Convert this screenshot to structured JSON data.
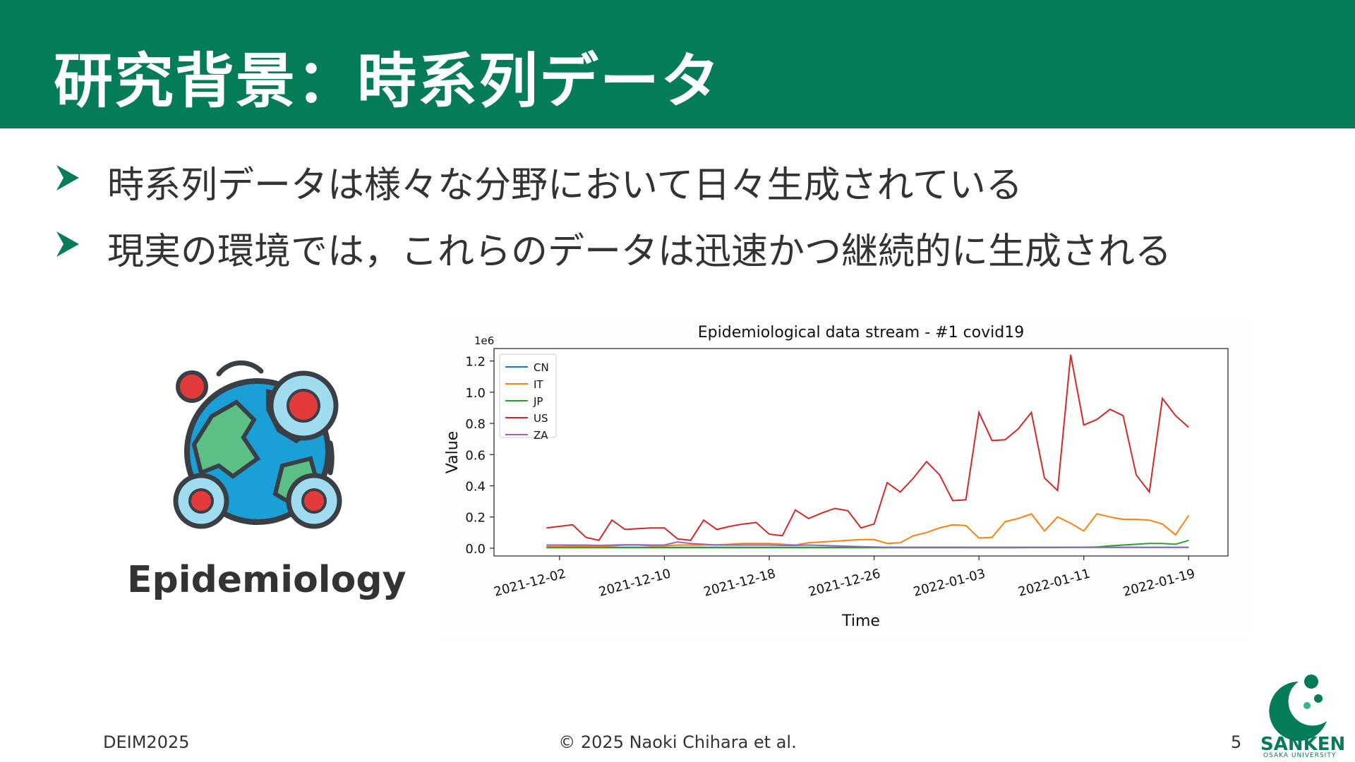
{
  "slide": {
    "title": "研究背景：時系列データ",
    "bullets": [
      "時系列データは様々な分野において日々生成されている",
      "現実の環境では，これらのデータは迅速かつ継続的に生成される"
    ],
    "image_label": "Epidemiology",
    "image_icon": "globe-virus-icon"
  },
  "footer": {
    "left": "DEIM2025",
    "center": "© 2025 Naoki Chihara et al.",
    "page": "5",
    "logo_text": "SANKEN",
    "logo_sub": "OSAKA UNIVERSITY"
  },
  "colors": {
    "header": "#047c58",
    "CN": "#1f77b4",
    "IT": "#ff7f0e",
    "JP": "#2ca02c",
    "US": "#d62728",
    "ZA": "#9467bd"
  },
  "chart_data": {
    "type": "line",
    "title": "Epidemiological data stream - #1 covid19",
    "xlabel": "Time",
    "ylabel": "Value",
    "y_multiplier_label": "1e6",
    "ylim": [
      -0.05,
      1.28
    ],
    "yticks": [
      0.0,
      0.2,
      0.4,
      0.6,
      0.8,
      1.0,
      1.2
    ],
    "ytick_labels": [
      "0.0",
      "0.2",
      "0.4",
      "0.6",
      "0.8",
      "1.0",
      "1.2"
    ],
    "xlim": [
      "2021-11-27",
      "2022-01-22"
    ],
    "xticks": [
      "2021-12-02",
      "2021-12-10",
      "2021-12-18",
      "2021-12-26",
      "2022-01-03",
      "2022-01-11",
      "2022-01-19"
    ],
    "legend_position": "top-left",
    "grid": false,
    "x": [
      "2021-12-01",
      "2021-12-02",
      "2021-12-03",
      "2021-12-04",
      "2021-12-05",
      "2021-12-06",
      "2021-12-07",
      "2021-12-08",
      "2021-12-09",
      "2021-12-10",
      "2021-12-11",
      "2021-12-12",
      "2021-12-13",
      "2021-12-14",
      "2021-12-15",
      "2021-12-16",
      "2021-12-17",
      "2021-12-18",
      "2021-12-19",
      "2021-12-20",
      "2021-12-21",
      "2021-12-22",
      "2021-12-23",
      "2021-12-24",
      "2021-12-25",
      "2021-12-26",
      "2021-12-27",
      "2021-12-28",
      "2021-12-29",
      "2021-12-30",
      "2021-12-31",
      "2022-01-01",
      "2022-01-02",
      "2022-01-03",
      "2022-01-04",
      "2022-01-05",
      "2022-01-06",
      "2022-01-07",
      "2022-01-08",
      "2022-01-09",
      "2022-01-10",
      "2022-01-11",
      "2022-01-12",
      "2022-01-13",
      "2022-01-14",
      "2022-01-15",
      "2022-01-16",
      "2022-01-17",
      "2022-01-18",
      "2022-01-19"
    ],
    "series": [
      {
        "name": "CN",
        "values": [
          0.005,
          0.005,
          0.005,
          0.005,
          0.005,
          0.005,
          0.005,
          0.005,
          0.005,
          0.005,
          0.005,
          0.005,
          0.005,
          0.005,
          0.005,
          0.005,
          0.005,
          0.005,
          0.005,
          0.005,
          0.005,
          0.005,
          0.005,
          0.005,
          0.005,
          0.005,
          0.005,
          0.005,
          0.005,
          0.005,
          0.005,
          0.005,
          0.005,
          0.005,
          0.005,
          0.005,
          0.005,
          0.005,
          0.005,
          0.005,
          0.005,
          0.005,
          0.005,
          0.005,
          0.005,
          0.005,
          0.005,
          0.005,
          0.005,
          0.005
        ]
      },
      {
        "name": "IT",
        "values": [
          0.01,
          0.01,
          0.012,
          0.012,
          0.01,
          0.015,
          0.02,
          0.02,
          0.015,
          0.015,
          0.02,
          0.02,
          0.02,
          0.022,
          0.025,
          0.03,
          0.03,
          0.03,
          0.025,
          0.02,
          0.035,
          0.04,
          0.045,
          0.05,
          0.055,
          0.055,
          0.03,
          0.035,
          0.08,
          0.1,
          0.13,
          0.15,
          0.145,
          0.065,
          0.07,
          0.17,
          0.19,
          0.22,
          0.11,
          0.2,
          0.16,
          0.11,
          0.22,
          0.2,
          0.185,
          0.185,
          0.18,
          0.155,
          0.085,
          0.21
        ]
      },
      {
        "name": "JP",
        "values": [
          0.003,
          0.003,
          0.003,
          0.003,
          0.003,
          0.003,
          0.003,
          0.003,
          0.003,
          0.003,
          0.003,
          0.003,
          0.003,
          0.003,
          0.003,
          0.003,
          0.003,
          0.003,
          0.003,
          0.003,
          0.003,
          0.003,
          0.003,
          0.003,
          0.003,
          0.003,
          0.003,
          0.003,
          0.003,
          0.003,
          0.003,
          0.003,
          0.003,
          0.003,
          0.003,
          0.003,
          0.003,
          0.004,
          0.004,
          0.004,
          0.005,
          0.006,
          0.008,
          0.015,
          0.02,
          0.025,
          0.03,
          0.03,
          0.025,
          0.05
        ]
      },
      {
        "name": "US",
        "values": [
          0.13,
          0.14,
          0.15,
          0.07,
          0.05,
          0.18,
          0.12,
          0.125,
          0.13,
          0.13,
          0.06,
          0.05,
          0.18,
          0.12,
          0.14,
          0.155,
          0.165,
          0.09,
          0.08,
          0.245,
          0.19,
          0.225,
          0.255,
          0.24,
          0.13,
          0.155,
          0.42,
          0.36,
          0.45,
          0.555,
          0.47,
          0.305,
          0.31,
          0.87,
          0.69,
          0.695,
          0.765,
          0.87,
          0.45,
          0.37,
          1.24,
          0.79,
          0.825,
          0.89,
          0.85,
          0.47,
          0.36,
          0.96,
          0.85,
          0.775
        ]
      },
      {
        "name": "ZA",
        "values": [
          0.02,
          0.02,
          0.02,
          0.02,
          0.018,
          0.02,
          0.022,
          0.022,
          0.02,
          0.02,
          0.04,
          0.03,
          0.025,
          0.02,
          0.02,
          0.02,
          0.02,
          0.02,
          0.018,
          0.018,
          0.02,
          0.018,
          0.015,
          0.012,
          0.01,
          0.008,
          0.006,
          0.006,
          0.006,
          0.006,
          0.006,
          0.006,
          0.005,
          0.005,
          0.005,
          0.005,
          0.005,
          0.005,
          0.005,
          0.005,
          0.005,
          0.005,
          0.005,
          0.005,
          0.005,
          0.005,
          0.005,
          0.005,
          0.005,
          0.005
        ]
      }
    ]
  }
}
